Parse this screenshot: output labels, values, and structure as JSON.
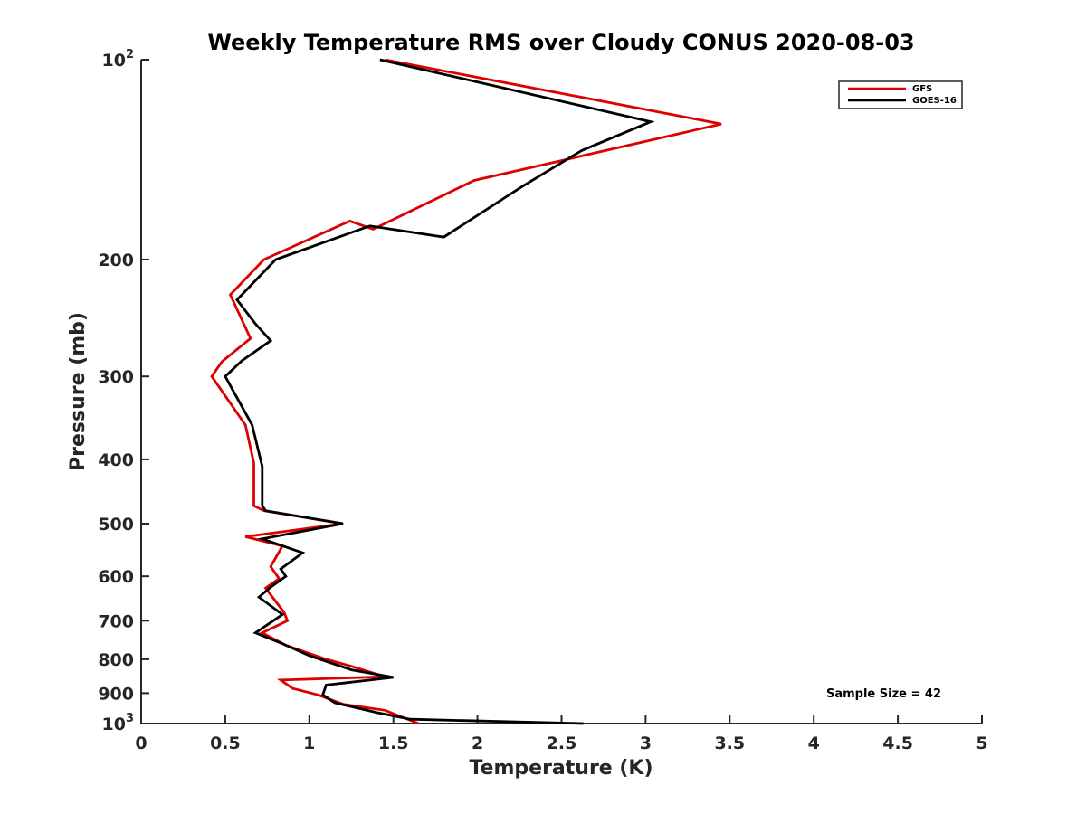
{
  "chart_data": {
    "type": "line",
    "title": "Weekly Temperature RMS over Cloudy CONUS 2020-08-03",
    "xlabel": "Temperature (K)",
    "ylabel": "Pressure (mb)",
    "xlim": [
      0,
      5
    ],
    "ylim": [
      100,
      1000
    ],
    "y_scale": "log",
    "y_reversed": true,
    "grid": false,
    "legend_position": "top-right",
    "x_ticks": [
      {
        "value": 0,
        "label": "0"
      },
      {
        "value": 0.5,
        "label": "0.5"
      },
      {
        "value": 1,
        "label": "1"
      },
      {
        "value": 1.5,
        "label": "1.5"
      },
      {
        "value": 2,
        "label": "2"
      },
      {
        "value": 2.5,
        "label": "2.5"
      },
      {
        "value": 3,
        "label": "3"
      },
      {
        "value": 3.5,
        "label": "3.5"
      },
      {
        "value": 4,
        "label": "4"
      },
      {
        "value": 4.5,
        "label": "4.5"
      },
      {
        "value": 5,
        "label": "5"
      }
    ],
    "y_ticks": [
      {
        "value": 100,
        "label": "10",
        "sup": "2"
      },
      {
        "value": 200,
        "label": "200"
      },
      {
        "value": 300,
        "label": "300"
      },
      {
        "value": 400,
        "label": "400"
      },
      {
        "value": 500,
        "label": "500"
      },
      {
        "value": 600,
        "label": "600"
      },
      {
        "value": 700,
        "label": "700"
      },
      {
        "value": 800,
        "label": "800"
      },
      {
        "value": 900,
        "label": "900"
      },
      {
        "value": 1000,
        "label": "10",
        "sup": "3"
      }
    ],
    "annotation": "Sample Size = 42",
    "series": [
      {
        "name": "GFS",
        "color": "#dd0000",
        "points": [
          {
            "x": 1.45,
            "y": 100
          },
          {
            "x": 3.45,
            "y": 125
          },
          {
            "x": 2.6,
            "y": 140
          },
          {
            "x": 1.98,
            "y": 152
          },
          {
            "x": 1.38,
            "y": 180
          },
          {
            "x": 1.24,
            "y": 175
          },
          {
            "x": 0.73,
            "y": 200
          },
          {
            "x": 0.53,
            "y": 226
          },
          {
            "x": 0.65,
            "y": 263
          },
          {
            "x": 0.48,
            "y": 285
          },
          {
            "x": 0.42,
            "y": 300
          },
          {
            "x": 0.62,
            "y": 355
          },
          {
            "x": 0.67,
            "y": 405
          },
          {
            "x": 0.67,
            "y": 440
          },
          {
            "x": 0.67,
            "y": 470
          },
          {
            "x": 0.73,
            "y": 478
          },
          {
            "x": 1.2,
            "y": 500
          },
          {
            "x": 0.62,
            "y": 523
          },
          {
            "x": 0.84,
            "y": 540
          },
          {
            "x": 0.77,
            "y": 580
          },
          {
            "x": 0.82,
            "y": 605
          },
          {
            "x": 0.74,
            "y": 625
          },
          {
            "x": 0.85,
            "y": 680
          },
          {
            "x": 0.87,
            "y": 700
          },
          {
            "x": 0.72,
            "y": 730
          },
          {
            "x": 0.86,
            "y": 762
          },
          {
            "x": 1.1,
            "y": 800
          },
          {
            "x": 1.25,
            "y": 820
          },
          {
            "x": 1.45,
            "y": 850
          },
          {
            "x": 0.83,
            "y": 860
          },
          {
            "x": 0.9,
            "y": 885
          },
          {
            "x": 1.05,
            "y": 905
          },
          {
            "x": 1.2,
            "y": 935
          },
          {
            "x": 1.45,
            "y": 955
          },
          {
            "x": 1.65,
            "y": 1000
          }
        ]
      },
      {
        "name": "GOES-16",
        "color": "#000000",
        "points": [
          {
            "x": 1.42,
            "y": 100
          },
          {
            "x": 3.03,
            "y": 124
          },
          {
            "x": 2.62,
            "y": 137
          },
          {
            "x": 2.27,
            "y": 155
          },
          {
            "x": 1.8,
            "y": 185
          },
          {
            "x": 1.36,
            "y": 178
          },
          {
            "x": 0.8,
            "y": 200
          },
          {
            "x": 0.57,
            "y": 230
          },
          {
            "x": 0.68,
            "y": 250
          },
          {
            "x": 0.77,
            "y": 265
          },
          {
            "x": 0.6,
            "y": 284
          },
          {
            "x": 0.5,
            "y": 300
          },
          {
            "x": 0.66,
            "y": 355
          },
          {
            "x": 0.72,
            "y": 410
          },
          {
            "x": 0.72,
            "y": 450
          },
          {
            "x": 0.72,
            "y": 470
          },
          {
            "x": 0.74,
            "y": 478
          },
          {
            "x": 1.2,
            "y": 500
          },
          {
            "x": 0.72,
            "y": 527
          },
          {
            "x": 0.96,
            "y": 553
          },
          {
            "x": 0.83,
            "y": 585
          },
          {
            "x": 0.86,
            "y": 600
          },
          {
            "x": 0.77,
            "y": 623
          },
          {
            "x": 0.7,
            "y": 645
          },
          {
            "x": 0.84,
            "y": 685
          },
          {
            "x": 0.68,
            "y": 730
          },
          {
            "x": 0.85,
            "y": 760
          },
          {
            "x": 1.0,
            "y": 790
          },
          {
            "x": 1.25,
            "y": 830
          },
          {
            "x": 1.5,
            "y": 852
          },
          {
            "x": 1.1,
            "y": 875
          },
          {
            "x": 1.08,
            "y": 905
          },
          {
            "x": 1.15,
            "y": 930
          },
          {
            "x": 1.4,
            "y": 962
          },
          {
            "x": 1.6,
            "y": 985
          },
          {
            "x": 2.63,
            "y": 1000
          }
        ]
      }
    ]
  }
}
